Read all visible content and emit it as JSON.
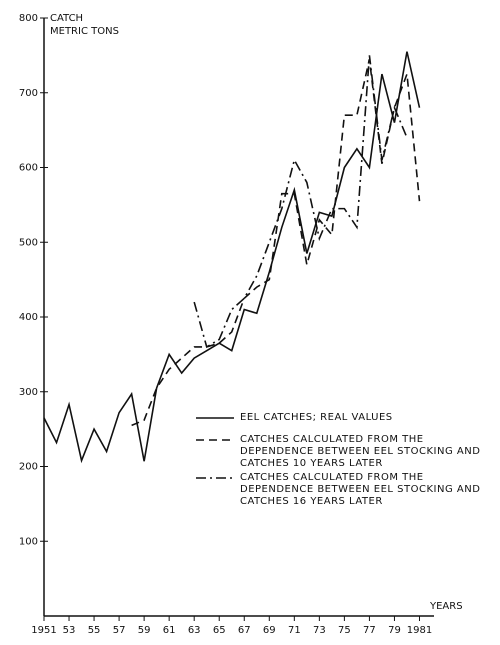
{
  "chart_data": {
    "type": "line",
    "y_label_lines": [
      "CATCH",
      "METRIC TONS"
    ],
    "x_label": "YEARS",
    "x": [
      1951,
      1952,
      1953,
      1954,
      1955,
      1956,
      1957,
      1958,
      1959,
      1960,
      1961,
      1962,
      1963,
      1964,
      1965,
      1966,
      1967,
      1968,
      1969,
      1970,
      1971,
      1972,
      1973,
      1974,
      1975,
      1976,
      1977,
      1978,
      1979,
      1980,
      1981
    ],
    "series": [
      {
        "name": "EEL CATCHES; REAL VALUES",
        "color": "#111111",
        "style": "solid",
        "values": [
          265,
          232,
          283,
          208,
          250,
          220,
          272,
          297,
          207,
          305,
          350,
          325,
          345,
          355,
          365,
          355,
          410,
          405,
          460,
          520,
          570,
          485,
          540,
          535,
          600,
          625,
          600,
          725,
          660,
          755,
          680
        ]
      },
      {
        "name": "CATCHES CALCULATED FROM THE DEPENDENCE BETWEEN EEL STOCKING AND CATCHES 10 YEARS LATER",
        "color": "#111111",
        "style": "dashed",
        "values": [
          null,
          null,
          null,
          null,
          null,
          null,
          null,
          255,
          262,
          305,
          330,
          345,
          360,
          360,
          365,
          380,
          425,
          440,
          450,
          565,
          565,
          470,
          530,
          510,
          670,
          670,
          745,
          605,
          680,
          725,
          555
        ]
      },
      {
        "name": "CATCHES CALCULATED FROM THE DEPENDENCE BETWEEN EEL STOCKING AND CATCHES 16 YEARS LATER",
        "color": "#111111",
        "style": "dashdot",
        "values": [
          null,
          null,
          null,
          null,
          null,
          null,
          null,
          null,
          null,
          null,
          null,
          null,
          420,
          360,
          370,
          410,
          425,
          455,
          500,
          545,
          610,
          580,
          505,
          545,
          545,
          520,
          750,
          610,
          680,
          640,
          null
        ]
      }
    ],
    "xlim": [
      1951,
      1982
    ],
    "ylim": [
      0,
      800
    ],
    "xticks": [
      {
        "value": 1951,
        "label": "1951"
      },
      {
        "value": 1953,
        "label": "53"
      },
      {
        "value": 1955,
        "label": "55"
      },
      {
        "value": 1957,
        "label": "57"
      },
      {
        "value": 1959,
        "label": "59"
      },
      {
        "value": 1961,
        "label": "61"
      },
      {
        "value": 1963,
        "label": "63"
      },
      {
        "value": 1965,
        "label": "65"
      },
      {
        "value": 1967,
        "label": "67"
      },
      {
        "value": 1969,
        "label": "69"
      },
      {
        "value": 1971,
        "label": "71"
      },
      {
        "value": 1973,
        "label": "73"
      },
      {
        "value": 1975,
        "label": "75"
      },
      {
        "value": 1977,
        "label": "77"
      },
      {
        "value": 1979,
        "label": "79"
      },
      {
        "value": 1981,
        "label": "1981"
      }
    ],
    "yticks": [
      100,
      200,
      300,
      400,
      500,
      600,
      700,
      800
    ],
    "grid": false
  }
}
